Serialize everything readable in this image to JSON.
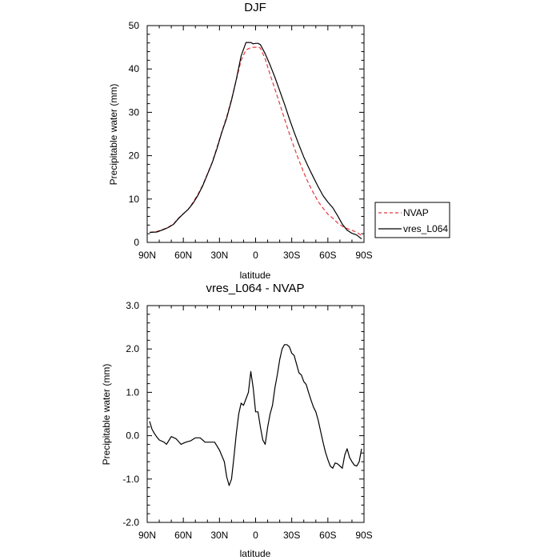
{
  "chart_data": [
    {
      "type": "line",
      "title": "DJF",
      "xlabel": "latitude",
      "ylabel": "Precipitable water (mm)",
      "xlim": [
        90,
        -90
      ],
      "ylim": [
        0,
        50
      ],
      "xticks": [
        90,
        60,
        30,
        0,
        -30,
        -60,
        -90
      ],
      "xtick_labels": [
        "90N",
        "60N",
        "30N",
        "0",
        "30S",
        "60S",
        "90S"
      ],
      "yticks": [
        0,
        10,
        20,
        30,
        40,
        50
      ],
      "ytick_labels": [
        "0",
        "10",
        "20",
        "30",
        "40",
        "50"
      ],
      "legend": {
        "placement": "right-outside",
        "entries": [
          "NVAP",
          "vres_L064"
        ]
      },
      "series": [
        {
          "name": "NVAP",
          "color": "#e8383d",
          "dash": "dashed",
          "x": [
            88,
            82,
            76,
            72,
            68,
            64,
            60,
            56,
            52,
            48,
            44,
            40,
            36,
            32,
            28,
            24,
            20,
            16,
            12,
            8,
            4,
            2,
            0,
            -2,
            -4,
            -8,
            -12,
            -16,
            -20,
            -24,
            -28,
            -32,
            -36,
            -40,
            -44,
            -48,
            -52,
            -56,
            -60,
            -64,
            -68,
            -72,
            -76,
            -80,
            -84,
            -88
          ],
          "y": [
            2.3,
            2.5,
            3.1,
            3.6,
            4.3,
            5.6,
            6.6,
            7.6,
            9.2,
            11.0,
            13.2,
            15.8,
            18.5,
            22.0,
            25.5,
            29.0,
            33.0,
            37.5,
            42.0,
            44.4,
            44.9,
            45.0,
            45.0,
            45.1,
            44.8,
            42.3,
            38.7,
            35.4,
            32.0,
            28.5,
            25.1,
            21.9,
            18.9,
            16.1,
            13.6,
            11.4,
            9.4,
            7.9,
            6.5,
            5.6,
            4.5,
            3.7,
            3.2,
            2.8,
            2.3,
            1.6
          ]
        },
        {
          "name": "vres_L064",
          "color": "#000000",
          "dash": "solid",
          "x": [
            88,
            82,
            76,
            72,
            68,
            64,
            60,
            56,
            52,
            48,
            44,
            40,
            36,
            32,
            28,
            24,
            20,
            16,
            12,
            8,
            4,
            2,
            0,
            -2,
            -4,
            -8,
            -12,
            -16,
            -20,
            -24,
            -28,
            -32,
            -36,
            -40,
            -44,
            -48,
            -52,
            -56,
            -60,
            -64,
            -68,
            -72,
            -76,
            -80,
            -84,
            -88
          ],
          "y": [
            2.3,
            2.4,
            3.0,
            3.5,
            4.2,
            5.5,
            6.6,
            7.6,
            9.0,
            10.8,
            13.0,
            15.7,
            18.4,
            21.7,
            25.4,
            28.7,
            32.8,
            37.6,
            43.0,
            46.1,
            46.1,
            45.8,
            45.9,
            45.9,
            45.6,
            43.5,
            40.9,
            38.1,
            35.0,
            31.9,
            28.5,
            25.4,
            22.5,
            19.7,
            17.3,
            15.0,
            12.8,
            10.8,
            9.3,
            8.0,
            6.2,
            4.2,
            2.8,
            2.1,
            1.7,
            0.8
          ]
        }
      ]
    },
    {
      "type": "line",
      "title": "vres_L064 - NVAP",
      "xlabel": "latitude",
      "ylabel": "Precipitable water (mm)",
      "xlim": [
        90,
        -90
      ],
      "ylim": [
        -2.0,
        3.0
      ],
      "xticks": [
        90,
        60,
        30,
        0,
        -30,
        -60,
        -90
      ],
      "xtick_labels": [
        "90N",
        "60N",
        "30N",
        "0",
        "30S",
        "60S",
        "90S"
      ],
      "yticks": [
        -2.0,
        -1.0,
        0.0,
        1.0,
        2.0,
        3.0
      ],
      "ytick_labels": [
        "-2.0",
        "-1.0",
        "0.0",
        "1.0",
        "2.0",
        "3.0"
      ],
      "series": [
        {
          "name": "vres_L064 - NVAP",
          "color": "#000000",
          "dash": "solid",
          "x": [
            88,
            86,
            84,
            82,
            80,
            76,
            74,
            70,
            66,
            62,
            58,
            54,
            50,
            46,
            42,
            38,
            34,
            30,
            26,
            24,
            22,
            20,
            18,
            16,
            14,
            12,
            10,
            8,
            6,
            4,
            2,
            0,
            -2,
            -4,
            -6,
            -8,
            -10,
            -12,
            -14,
            -16,
            -18,
            -20,
            -22,
            -24,
            -26,
            -28,
            -30,
            -32,
            -34,
            -36,
            -38,
            -40,
            -42,
            -44,
            -46,
            -48,
            -50,
            -52,
            -54,
            -56,
            -58,
            -60,
            -62,
            -64,
            -66,
            -68,
            -70,
            -72,
            -74,
            -76,
            -78,
            -80,
            -82,
            -84,
            -86,
            -88
          ],
          "y": [
            0.33,
            0.15,
            0.05,
            -0.03,
            -0.1,
            -0.15,
            -0.2,
            -0.02,
            -0.07,
            -0.2,
            -0.15,
            -0.12,
            -0.05,
            -0.05,
            -0.15,
            -0.15,
            -0.15,
            -0.33,
            -0.6,
            -0.95,
            -1.15,
            -1.0,
            -0.5,
            0.05,
            0.5,
            0.75,
            0.7,
            0.85,
            1.0,
            1.48,
            1.1,
            0.55,
            0.55,
            0.2,
            -0.1,
            -0.2,
            0.2,
            0.5,
            0.7,
            1.1,
            1.4,
            1.75,
            2.0,
            2.1,
            2.1,
            2.05,
            1.9,
            1.85,
            1.65,
            1.45,
            1.4,
            1.25,
            1.18,
            1.0,
            0.82,
            0.66,
            0.55,
            0.35,
            0.1,
            -0.15,
            -0.38,
            -0.55,
            -0.7,
            -0.75,
            -0.63,
            -0.65,
            -0.7,
            -0.75,
            -0.45,
            -0.3,
            -0.5,
            -0.6,
            -0.68,
            -0.7,
            -0.6,
            -0.3
          ]
        }
      ]
    }
  ]
}
